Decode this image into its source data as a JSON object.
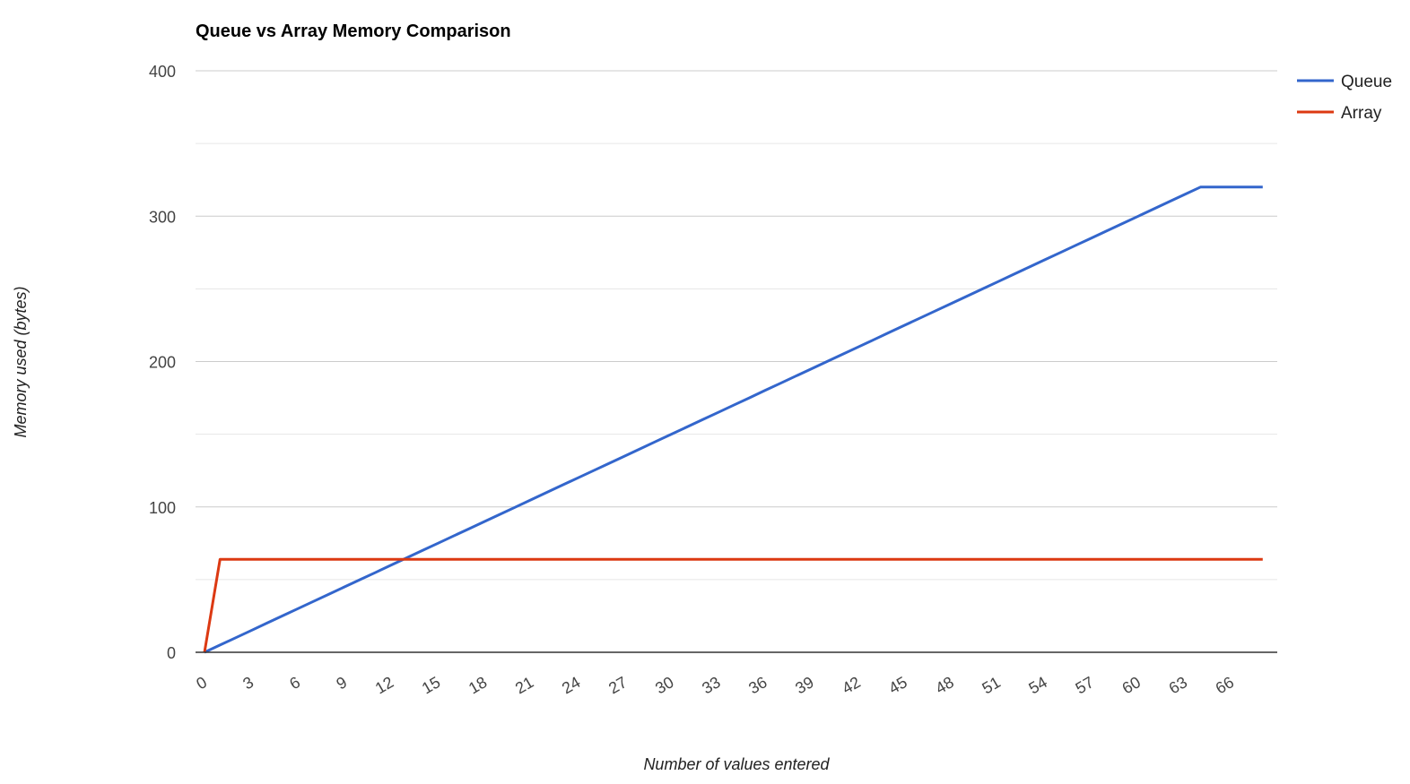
{
  "chart_data": {
    "type": "line",
    "title": "Queue vs Array Memory Comparison",
    "xlabel": "Number of values entered",
    "ylabel": "Memory used (bytes)",
    "x": [
      0,
      1,
      2,
      3,
      4,
      5,
      6,
      7,
      8,
      9,
      10,
      11,
      12,
      13,
      14,
      15,
      16,
      17,
      18,
      19,
      20,
      21,
      22,
      23,
      24,
      25,
      26,
      27,
      28,
      29,
      30,
      31,
      32,
      33,
      34,
      35,
      36,
      37,
      38,
      39,
      40,
      41,
      42,
      43,
      44,
      45,
      46,
      47,
      48,
      49,
      50,
      51,
      52,
      53,
      54,
      55,
      56,
      57,
      58,
      59,
      60,
      61,
      62,
      63,
      64,
      65,
      66,
      67,
      68
    ],
    "series": [
      {
        "name": "Queue",
        "color": "#3366cc",
        "values": [
          0,
          5,
          10,
          15,
          20,
          25,
          30,
          35,
          40,
          45,
          50,
          55,
          60,
          65,
          70,
          75,
          80,
          85,
          90,
          95,
          100,
          105,
          110,
          115,
          120,
          125,
          130,
          135,
          140,
          145,
          150,
          155,
          160,
          165,
          170,
          175,
          180,
          185,
          190,
          195,
          200,
          205,
          210,
          215,
          220,
          225,
          230,
          235,
          240,
          245,
          250,
          255,
          260,
          265,
          270,
          275,
          280,
          285,
          290,
          295,
          300,
          305,
          310,
          315,
          320,
          320,
          320,
          320,
          320
        ]
      },
      {
        "name": "Array",
        "color": "#dc3912",
        "values": [
          0,
          64,
          64,
          64,
          64,
          64,
          64,
          64,
          64,
          64,
          64,
          64,
          64,
          64,
          64,
          64,
          64,
          64,
          64,
          64,
          64,
          64,
          64,
          64,
          64,
          64,
          64,
          64,
          64,
          64,
          64,
          64,
          64,
          64,
          64,
          64,
          64,
          64,
          64,
          64,
          64,
          64,
          64,
          64,
          64,
          64,
          64,
          64,
          64,
          64,
          64,
          64,
          64,
          64,
          64,
          64,
          64,
          64,
          64,
          64,
          64,
          64,
          64,
          64,
          64,
          64,
          64,
          64,
          64
        ]
      }
    ],
    "xlim": [
      0,
      69
    ],
    "ylim": [
      0,
      400
    ],
    "y_ticks": [
      "0",
      "100",
      "200",
      "300",
      "400"
    ],
    "x_ticks": [
      "0",
      "3",
      "6",
      "9",
      "12",
      "15",
      "18",
      "21",
      "24",
      "27",
      "30",
      "33",
      "36",
      "39",
      "42",
      "45",
      "48",
      "51",
      "54",
      "57",
      "60",
      "63",
      "66"
    ],
    "grid": true,
    "legend_position": "right"
  }
}
